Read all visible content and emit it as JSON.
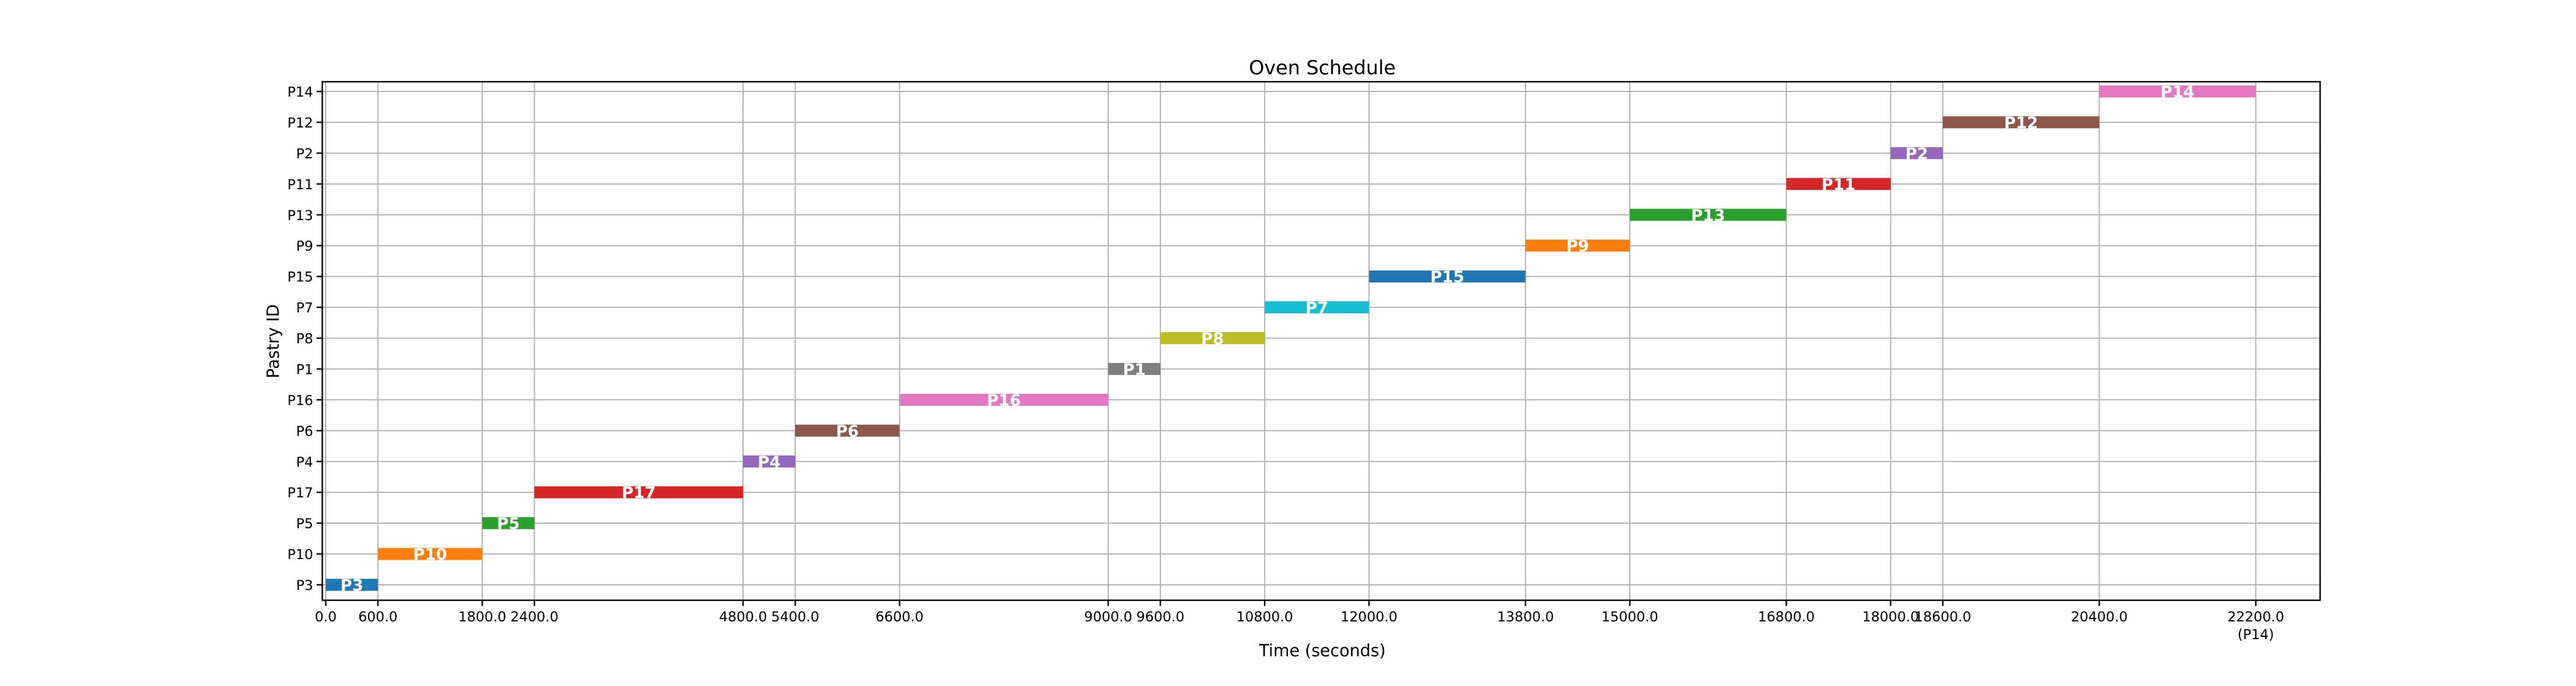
{
  "chart_data": {
    "type": "gantt",
    "title": "Oven Schedule",
    "xlabel": "Time (seconds)",
    "ylabel": "Pastry ID",
    "xlim": [
      0,
      22200
    ],
    "grid": true,
    "y_categories": [
      "P3",
      "P10",
      "P5",
      "P17",
      "P4",
      "P6",
      "P16",
      "P1",
      "P8",
      "P7",
      "P15",
      "P9",
      "P13",
      "P11",
      "P2",
      "P12",
      "P14"
    ],
    "x_ticks": [
      {
        "value": 0,
        "label": "0.0"
      },
      {
        "value": 600,
        "label": "600.0"
      },
      {
        "value": 1800,
        "label": "1800.0"
      },
      {
        "value": 2400,
        "label": "2400.0"
      },
      {
        "value": 4800,
        "label": "4800.0"
      },
      {
        "value": 5400,
        "label": "5400.0"
      },
      {
        "value": 6600,
        "label": "6600.0"
      },
      {
        "value": 9000,
        "label": "9000.0"
      },
      {
        "value": 9600,
        "label": "9600.0"
      },
      {
        "value": 10800,
        "label": "10800.0"
      },
      {
        "value": 12000,
        "label": "12000.0"
      },
      {
        "value": 13800,
        "label": "13800.0"
      },
      {
        "value": 15000,
        "label": "15000.0"
      },
      {
        "value": 16800,
        "label": "16800.0"
      },
      {
        "value": 18000,
        "label": "18000.0"
      },
      {
        "value": 18600,
        "label": "18600.0"
      },
      {
        "value": 20400,
        "label": "20400.0"
      },
      {
        "value": 22200,
        "label": "22200.0",
        "sublabel": "(P14)"
      }
    ],
    "tasks": [
      {
        "name": "P3",
        "start": 0,
        "end": 600,
        "color": "#1f77b4"
      },
      {
        "name": "P10",
        "start": 600,
        "end": 1800,
        "color": "#ff7f0e"
      },
      {
        "name": "P5",
        "start": 1800,
        "end": 2400,
        "color": "#2ca02c"
      },
      {
        "name": "P17",
        "start": 2400,
        "end": 4800,
        "color": "#d62728"
      },
      {
        "name": "P4",
        "start": 4800,
        "end": 5400,
        "color": "#9467bd"
      },
      {
        "name": "P6",
        "start": 5400,
        "end": 6600,
        "color": "#8c564b"
      },
      {
        "name": "P16",
        "start": 6600,
        "end": 9000,
        "color": "#e377c2"
      },
      {
        "name": "P1",
        "start": 9000,
        "end": 9600,
        "color": "#7f7f7f"
      },
      {
        "name": "P8",
        "start": 9600,
        "end": 10800,
        "color": "#bcbd22"
      },
      {
        "name": "P7",
        "start": 10800,
        "end": 12000,
        "color": "#17becf"
      },
      {
        "name": "P15",
        "start": 12000,
        "end": 13800,
        "color": "#1f77b4"
      },
      {
        "name": "P9",
        "start": 13800,
        "end": 15000,
        "color": "#ff7f0e"
      },
      {
        "name": "P13",
        "start": 15000,
        "end": 16800,
        "color": "#2ca02c"
      },
      {
        "name": "P11",
        "start": 16800,
        "end": 18000,
        "color": "#d62728"
      },
      {
        "name": "P2",
        "start": 18000,
        "end": 18600,
        "color": "#9467bd"
      },
      {
        "name": "P12",
        "start": 18600,
        "end": 20400,
        "color": "#8c564b"
      },
      {
        "name": "P14",
        "start": 20400,
        "end": 22200,
        "color": "#e377c2"
      }
    ]
  }
}
